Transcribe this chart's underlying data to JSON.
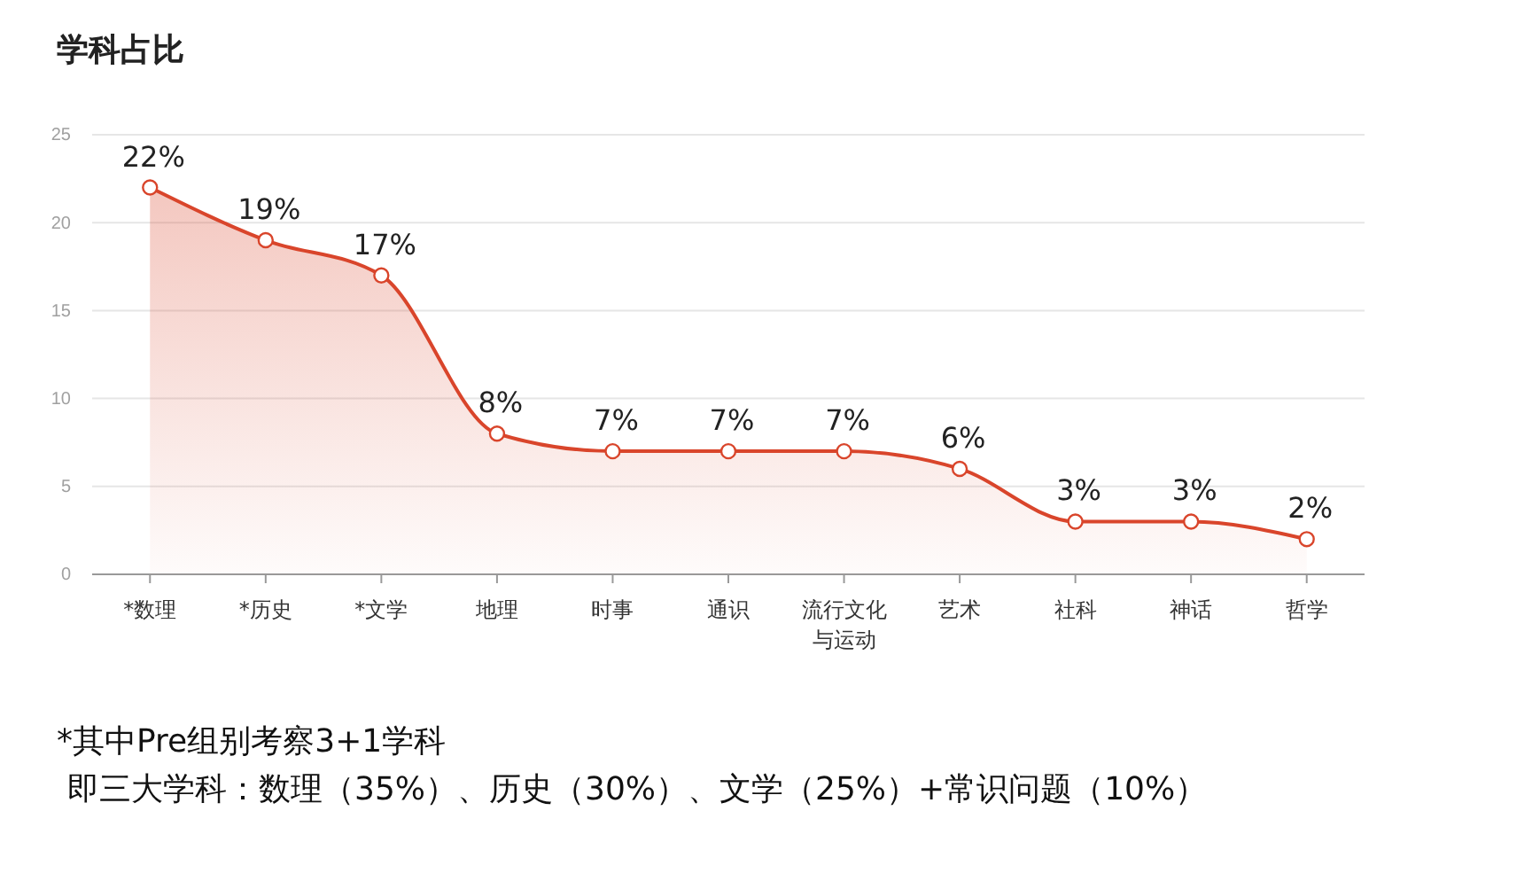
{
  "chart_data": {
    "type": "area",
    "title": "学科占比",
    "categories": [
      "*数理",
      "*历史",
      "*文学",
      "地理",
      "时事",
      "通识",
      "流行文化与运动",
      "艺术",
      "社科",
      "神话",
      "哲学"
    ],
    "values": [
      22,
      19,
      17,
      8,
      7,
      7,
      7,
      6,
      3,
      3,
      2
    ],
    "value_labels": [
      "22%",
      "19%",
      "17%",
      "8%",
      "7%",
      "7%",
      "7%",
      "6%",
      "3%",
      "3%",
      "2%"
    ],
    "color": "#d9452b",
    "ylim": [
      0,
      25
    ],
    "yticks": [
      0,
      5,
      10,
      15,
      20,
      25
    ],
    "grid": "y",
    "marker": "circle",
    "annotations": [
      "*其中Pre组别考察3+1学科",
      "即三大学科：数理（35%）、历史（30%）、文学（25%）+常识问题（10%）"
    ]
  }
}
